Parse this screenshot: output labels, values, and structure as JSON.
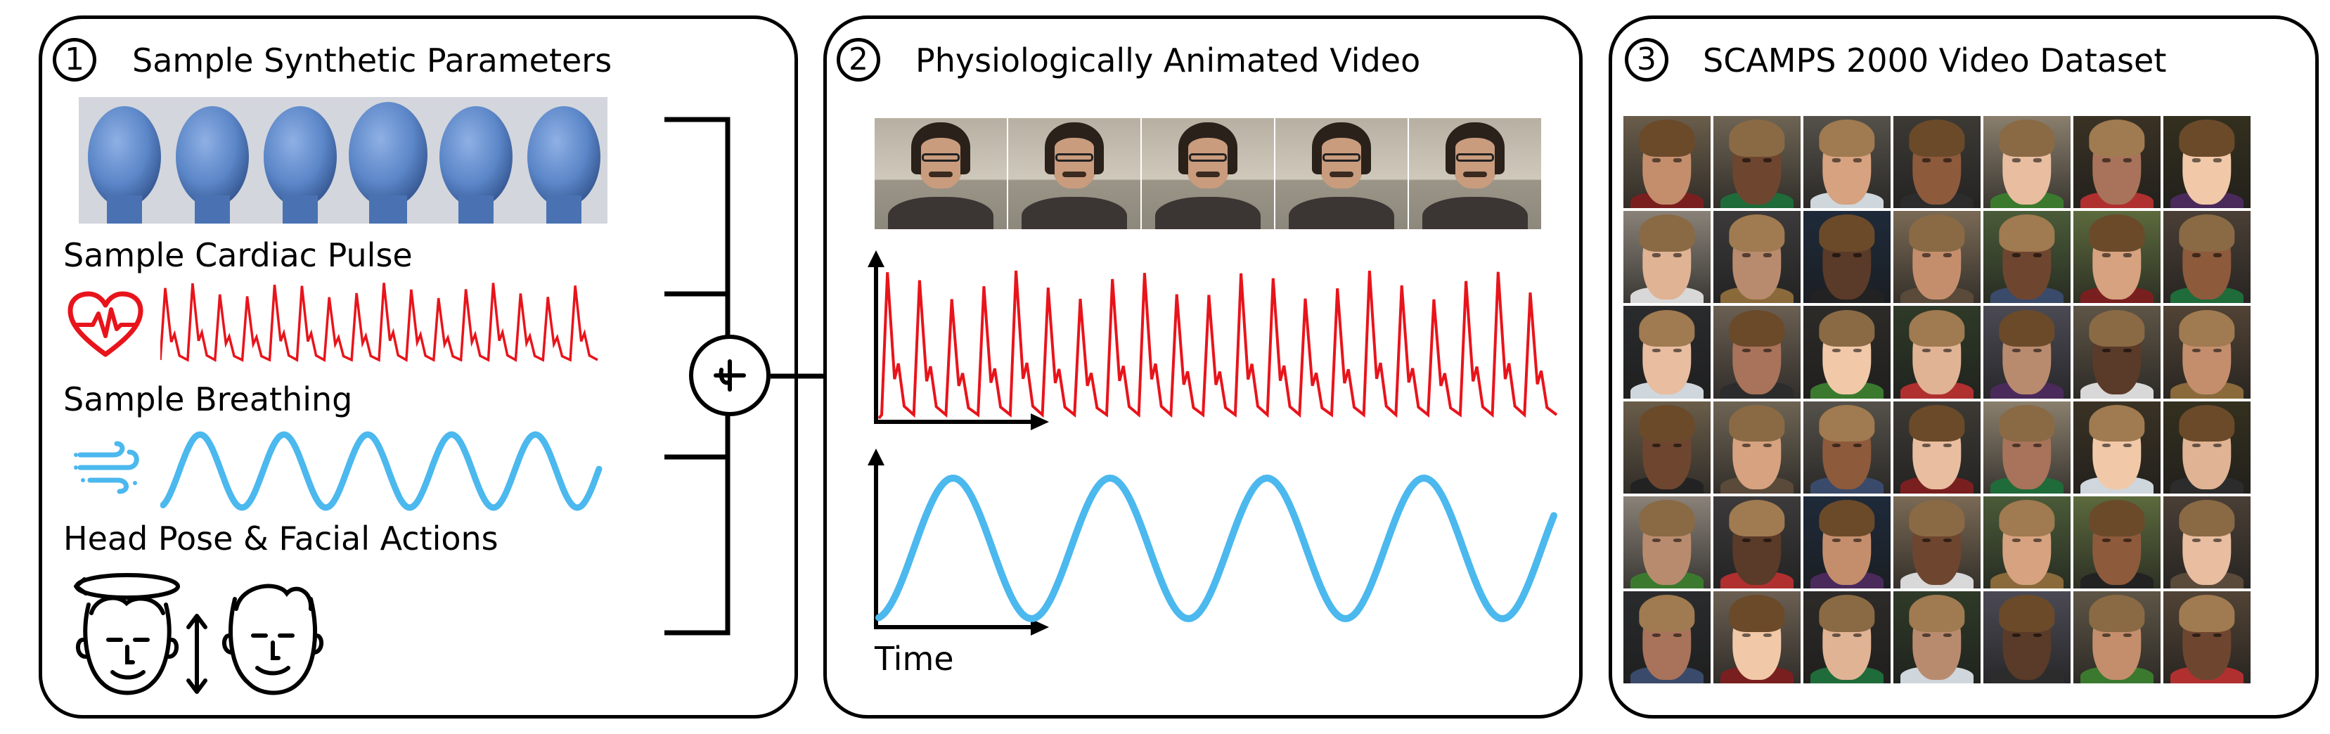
{
  "panels": [
    {
      "number": "1",
      "title": "Sample Synthetic Parameters"
    },
    {
      "number": "2",
      "title": "Physiologically Animated Video"
    },
    {
      "number": "3",
      "title": "SCAMPS 2000 Video Dataset"
    }
  ],
  "labels": {
    "cardiac": "Sample Cardiac Pulse",
    "breathing": "Sample Breathing",
    "head_pose": "Head Pose & Facial Actions",
    "time": "Time"
  },
  "icons": {
    "cardiac": "heart-pulse-icon",
    "breathing": "wind-icon",
    "combine": "combine-icon"
  },
  "colors": {
    "pulse": "#e8141b",
    "breath": "#4bb8ee",
    "mesh": "#5b86c8",
    "frame_bg": "#c9c3b3",
    "outline": "#000000"
  },
  "dataset_grid": {
    "rows": 6,
    "columns": 7
  }
}
